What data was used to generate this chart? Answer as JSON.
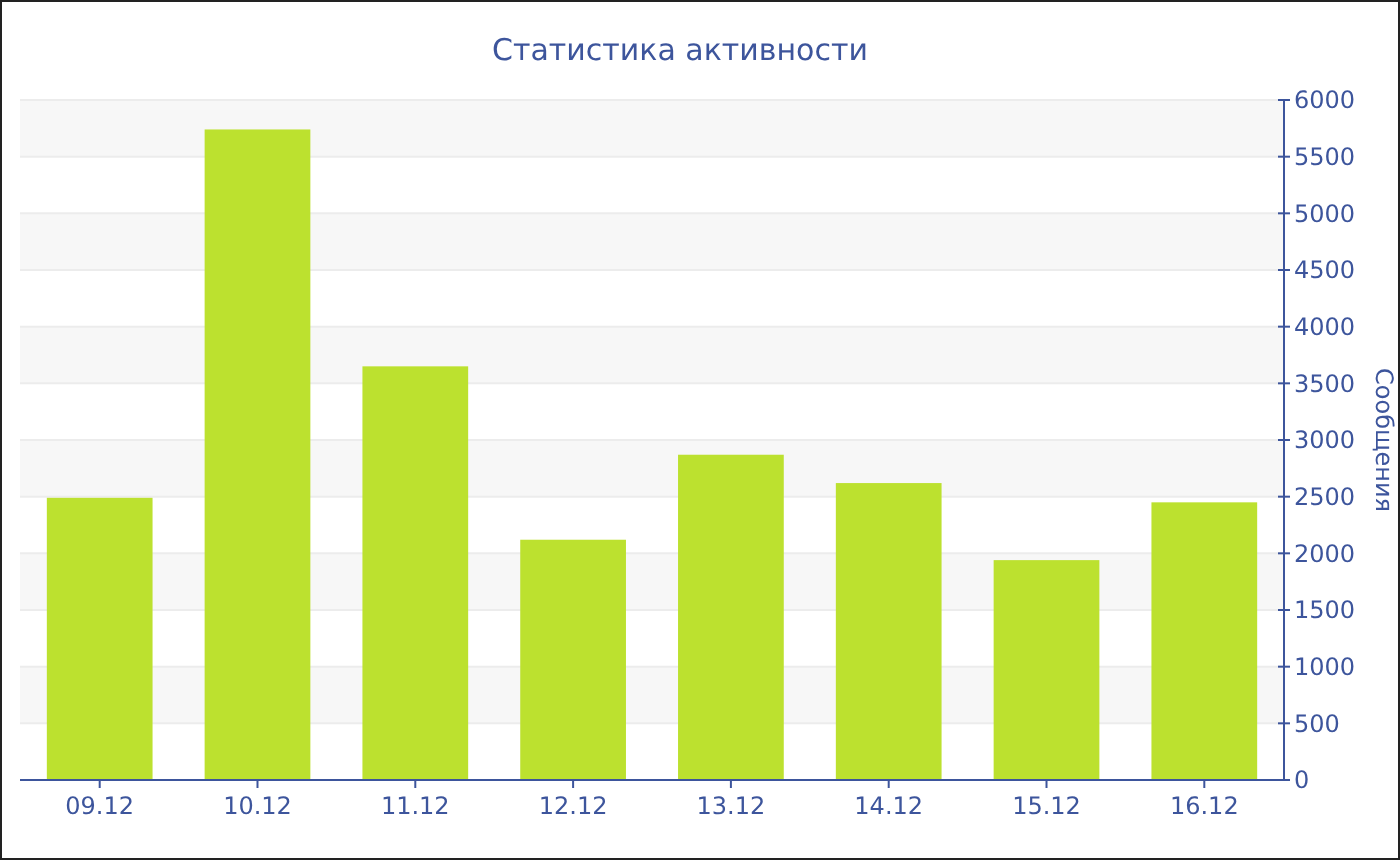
{
  "chart_data": {
    "type": "bar",
    "title": "Статистика активности",
    "ylabel": "Сообщения",
    "categories": [
      "09.12",
      "10.12",
      "11.12",
      "12.12",
      "13.12",
      "14.12",
      "15.12",
      "16.12"
    ],
    "values": [
      2490,
      5740,
      3650,
      2120,
      2870,
      2620,
      1940,
      2450
    ],
    "color": "#bce12f",
    "ylim": [
      0,
      6000
    ],
    "yticks": [
      0,
      500,
      1000,
      1500,
      2000,
      2500,
      3000,
      3500,
      4000,
      4500,
      5000,
      5500,
      6000
    ],
    "grid": "y"
  }
}
